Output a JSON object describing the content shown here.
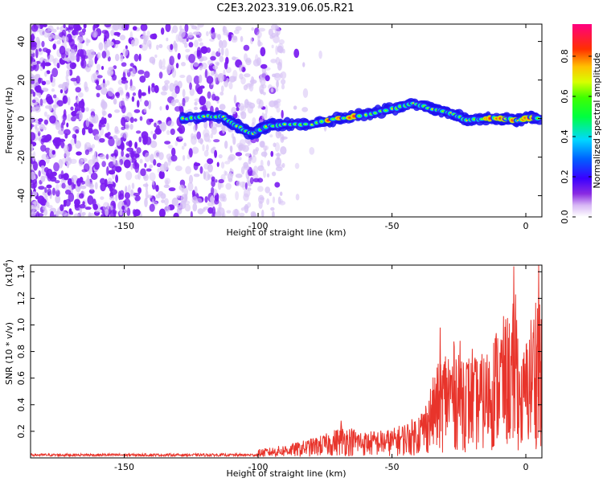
{
  "title": "C2E3.2023.319.06.05.R21",
  "colors": {
    "plot_bg": "#ffffff",
    "axis": "#000000",
    "snr_line": "#e8342b",
    "noise_purple": "#7b1cf0",
    "noise_light": "#d7c3f5"
  },
  "colorbar": {
    "label": "Normalized spectral amplitude",
    "ticks": [
      {
        "v": 0.0,
        "label": "0.0"
      },
      {
        "v": 0.2,
        "label": "0.2"
      },
      {
        "v": 0.4,
        "label": "0.4"
      },
      {
        "v": 0.6,
        "label": "0.6"
      },
      {
        "v": 0.8,
        "label": "0.8"
      }
    ],
    "range": [
      0,
      0.96
    ]
  },
  "chart_data": [
    {
      "type": "heatmap",
      "xlabel": "Height of straight line (km)",
      "ylabel": "Frequency (Hz)",
      "xlim": [
        -185,
        6
      ],
      "ylim": [
        -51,
        49
      ],
      "xticks": [
        {
          "v": -150,
          "label": "-150"
        },
        {
          "v": -100,
          "label": "-100"
        },
        {
          "v": -50,
          "label": "-50"
        },
        {
          "v": 0,
          "label": "0"
        }
      ],
      "yticks": [
        {
          "v": 40,
          "label": "40"
        },
        {
          "v": 20,
          "label": "20"
        },
        {
          "v": 0,
          "label": "0"
        },
        {
          "v": -20,
          "label": "-20"
        },
        {
          "v": -40,
          "label": "-40"
        }
      ],
      "signal_ridge": [
        {
          "x": -128,
          "f": 0,
          "amp": 0.5
        },
        {
          "x": -120,
          "f": 1,
          "amp": 0.7
        },
        {
          "x": -113,
          "f": 1,
          "amp": 0.6
        },
        {
          "x": -108,
          "f": -4,
          "amp": 0.5
        },
        {
          "x": -102,
          "f": -8,
          "amp": 0.6
        },
        {
          "x": -97,
          "f": -4,
          "amp": 0.75
        },
        {
          "x": -90,
          "f": -3,
          "amp": 0.7
        },
        {
          "x": -80,
          "f": -3,
          "amp": 0.75
        },
        {
          "x": -70,
          "f": 0,
          "amp": 0.9
        },
        {
          "x": -60,
          "f": 2,
          "amp": 0.8
        },
        {
          "x": -50,
          "f": 5,
          "amp": 0.75
        },
        {
          "x": -42,
          "f": 8,
          "amp": 0.7
        },
        {
          "x": -35,
          "f": 5,
          "amp": 0.6
        },
        {
          "x": -28,
          "f": 3,
          "amp": 0.7
        },
        {
          "x": -22,
          "f": -1,
          "amp": 0.75
        },
        {
          "x": -15,
          "f": 0,
          "amp": 0.85
        },
        {
          "x": -8,
          "f": 0,
          "amp": 0.9
        },
        {
          "x": -3,
          "f": -1,
          "amp": 0.8
        },
        {
          "x": 2,
          "f": 1,
          "amp": 0.9
        },
        {
          "x": 5,
          "f": 0,
          "amp": 0.7
        }
      ]
    },
    {
      "type": "line",
      "xlabel": "Height of straight line (km)",
      "ylabel": "SNR (10 * v/v)",
      "scale_label": "(x10",
      "scale_exp": "4",
      "scale_close": ")",
      "xlim": [
        -185,
        6
      ],
      "ylim": [
        0,
        1.45
      ],
      "xticks": [
        {
          "v": -150,
          "label": "-150"
        },
        {
          "v": -100,
          "label": "-100"
        },
        {
          "v": -50,
          "label": "-50"
        },
        {
          "v": 0,
          "label": "0"
        }
      ],
      "yticks": [
        {
          "v": 0.2,
          "label": "0.2"
        },
        {
          "v": 0.4,
          "label": "0.4"
        },
        {
          "v": 0.6,
          "label": "0.6"
        },
        {
          "v": 0.8,
          "label": "0.8"
        },
        {
          "v": 1.0,
          "label": "1.0"
        },
        {
          "v": 1.2,
          "label": "1.2"
        },
        {
          "v": 1.4,
          "label": "1.4"
        }
      ],
      "series": [
        {
          "envelope": [
            [
              -185,
              0.03
            ],
            [
              -150,
              0.03
            ],
            [
              -120,
              0.04
            ],
            [
              -105,
              0.05
            ],
            [
              -95,
              0.08
            ],
            [
              -85,
              0.12
            ],
            [
              -75,
              0.18
            ],
            [
              -68,
              0.25
            ],
            [
              -60,
              0.2
            ],
            [
              -50,
              0.22
            ],
            [
              -42,
              0.3
            ],
            [
              -38,
              0.4
            ],
            [
              -34,
              0.65
            ],
            [
              -30,
              0.85
            ],
            [
              -25,
              0.9
            ],
            [
              -20,
              0.75
            ],
            [
              -15,
              0.8
            ],
            [
              -10,
              1.05
            ],
            [
              -5,
              1.1
            ],
            [
              -4,
              1.45
            ],
            [
              -2,
              0.7
            ],
            [
              0,
              0.9
            ],
            [
              3,
              1.2
            ],
            [
              5,
              1.45
            ],
            [
              6,
              0.9
            ]
          ],
          "peaks": [
            {
              "x": -4.5,
              "y": 1.44
            },
            {
              "x": 4.8,
              "y": 1.45
            },
            {
              "x": -32,
              "y": 0.98
            },
            {
              "x": -20,
              "y": 0.82
            },
            {
              "x": -69,
              "y": 0.28
            }
          ]
        }
      ]
    }
  ]
}
